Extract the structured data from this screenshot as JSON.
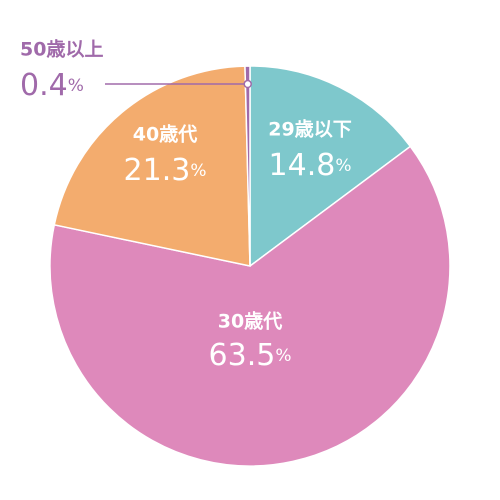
{
  "chart_data": {
    "type": "pie",
    "categories": [
      "29歳以下",
      "30歳代",
      "40歳代",
      "50歳以上"
    ],
    "values": [
      14.8,
      63.5,
      21.3,
      0.4
    ],
    "value_labels": [
      "14.8%",
      "63.5%",
      "21.3%",
      "0.4%"
    ],
    "colors": [
      "#7ec8cc",
      "#de89bb",
      "#f3ac6e",
      "#a06aaa"
    ]
  }
}
